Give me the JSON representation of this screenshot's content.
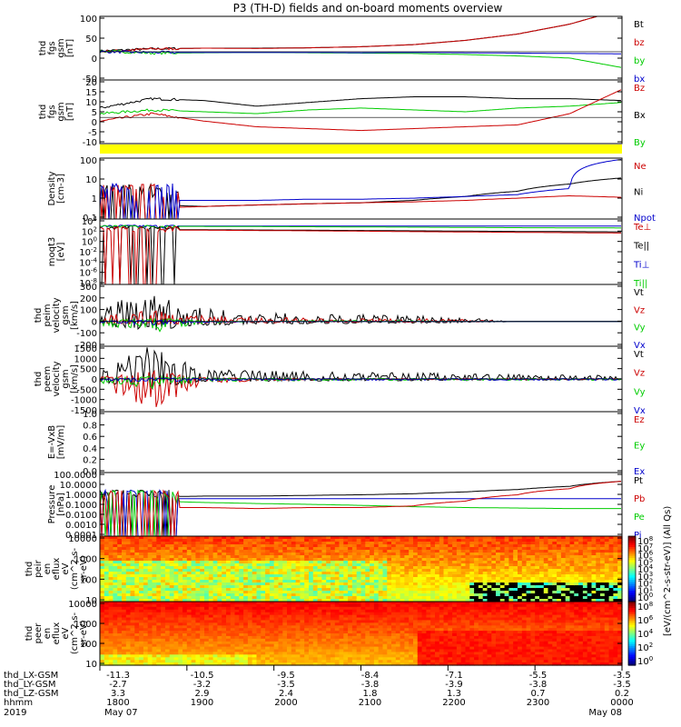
{
  "title": "P3 (TH-D) fields and on-board moments overview",
  "colors": {
    "black": "#000000",
    "red": "#cc0000",
    "green": "#00cc00",
    "blue": "#0000cc",
    "yellow": "#ffff00"
  },
  "chart_data": [
    {
      "type": "line",
      "ylabel": [
        "thd",
        "fgs",
        "gsm",
        "[nT]"
      ],
      "yticks": [
        "100",
        "50",
        "0",
        "-50"
      ],
      "ylim": [
        -80,
        100
      ],
      "legend": [
        {
          "label": "Bt",
          "color": "black"
        },
        {
          "label": "bz",
          "color": "red"
        },
        {
          "label": "by",
          "color": "green"
        },
        {
          "label": "bx",
          "color": "blue"
        }
      ],
      "series": [
        {
          "color": "black",
          "values": [
            2,
            8,
            10,
            10,
            11,
            14,
            20,
            32,
            50,
            78,
            120
          ]
        },
        {
          "color": "red",
          "values": [
            0,
            8,
            10,
            9,
            11,
            14,
            20,
            32,
            50,
            78,
            120
          ]
        },
        {
          "color": "green",
          "values": [
            2,
            -4,
            -3,
            -2,
            -3,
            -4,
            -5,
            -8,
            -12,
            -18,
            -45
          ]
        },
        {
          "color": "blue",
          "values": [
            0,
            -2,
            -2,
            -2,
            -2,
            -3,
            -2,
            -3,
            -4,
            -5,
            -6
          ]
        }
      ]
    },
    {
      "type": "line",
      "ylabel": [
        "thd",
        "fgs",
        "gsm",
        "[nT]"
      ],
      "yticks": [
        "20",
        "15",
        "10",
        "5",
        "0",
        "-5",
        "-10"
      ],
      "ylim": [
        -14,
        20
      ],
      "legend": [
        {
          "label": "Bz",
          "color": "red"
        },
        {
          "label": "Bx",
          "color": "black"
        },
        {
          "label": "By",
          "color": "green"
        }
      ],
      "series": [
        {
          "color": "black",
          "values": [
            5,
            10,
            9,
            6,
            8,
            10,
            11,
            11,
            10,
            10,
            9
          ]
        },
        {
          "color": "green",
          "values": [
            2,
            4,
            3,
            2,
            4,
            5,
            4,
            3,
            5,
            6,
            8
          ]
        },
        {
          "color": "red",
          "values": [
            -2,
            2,
            -2,
            -5,
            -6,
            -7,
            -6,
            -5,
            -4,
            2,
            15
          ]
        }
      ]
    },
    {
      "type": "line",
      "ylabel": [
        "Density",
        "[cm-3]"
      ],
      "yticks": [
        "100",
        "10",
        "1",
        "0.1"
      ],
      "ylim": [
        0.03,
        300
      ],
      "log": true,
      "legend": [
        {
          "label": "Ne",
          "color": "red"
        },
        {
          "label": "Ni",
          "color": "black"
        },
        {
          "label": "Npot",
          "color": "blue"
        }
      ],
      "series": [
        {
          "color": "black",
          "values": [
            0.3,
            0.25,
            0.2,
            0.25,
            0.3,
            0.35,
            0.5,
            0.9,
            2,
            6,
            15
          ]
        },
        {
          "color": "red",
          "values": [
            0.2,
            0.15,
            0.2,
            0.25,
            0.3,
            0.35,
            0.4,
            0.5,
            0.7,
            1,
            0.8
          ]
        },
        {
          "color": "blue",
          "values": [
            0.6,
            0.5,
            0.5,
            0.5,
            0.6,
            0.6,
            0.7,
            0.9,
            1.2,
            3,
            250
          ]
        }
      ]
    },
    {
      "type": "line",
      "ylabel": [
        "moqt3",
        "[eV]"
      ],
      "yticks": [
        "10^4",
        "10^2",
        "10^0",
        "10^-2",
        "10^-4",
        "10^-6",
        "10^-8"
      ],
      "ylim": [
        1e-09,
        100000.0
      ],
      "log": true,
      "legend": [
        {
          "label": "Te⊥",
          "color": "red"
        },
        {
          "label": "Te||",
          "color": "black"
        },
        {
          "label": "Ti⊥",
          "color": "blue"
        },
        {
          "label": "Ti||",
          "color": "green"
        }
      ],
      "series": [
        {
          "color": "blue",
          "values": [
            3000,
            3000,
            3000,
            3000,
            3000,
            3000,
            3000,
            3000,
            3000,
            3000,
            3000
          ]
        },
        {
          "color": "green",
          "values": [
            3000,
            2800,
            2600,
            2400,
            2200,
            2000,
            1800,
            1600,
            1400,
            1300,
            1200
          ]
        },
        {
          "color": "black",
          "values": [
            600,
            550,
            500,
            450,
            400,
            350,
            300,
            260,
            220,
            200,
            180
          ]
        },
        {
          "color": "red",
          "values": [
            500,
            450,
            400,
            350,
            300,
            250,
            200,
            170,
            140,
            120,
            100
          ]
        }
      ]
    },
    {
      "type": "line",
      "ylabel": [
        "thd",
        "peim",
        "velocity",
        "gsm",
        "[km/s]"
      ],
      "yticks": [
        "300",
        "200",
        "100",
        "0",
        "-100",
        "-200"
      ],
      "ylim": [
        -200,
        300
      ],
      "legend": [
        {
          "label": "Vt",
          "color": "black"
        },
        {
          "label": "Vz",
          "color": "red"
        },
        {
          "label": "Vy",
          "color": "green"
        },
        {
          "label": "Vx",
          "color": "blue"
        }
      ],
      "series": [
        {
          "color": "black",
          "values": [
            80,
            150,
            70,
            45,
            40,
            35,
            30,
            20,
            0,
            0,
            0
          ]
        },
        {
          "color": "red",
          "values": [
            30,
            60,
            30,
            20,
            20,
            15,
            15,
            10,
            0,
            0,
            0
          ]
        },
        {
          "color": "green",
          "values": [
            -20,
            -60,
            -10,
            0,
            5,
            5,
            5,
            0,
            0,
            0,
            0
          ]
        },
        {
          "color": "blue",
          "values": [
            -5,
            -20,
            -5,
            0,
            0,
            0,
            0,
            0,
            0,
            0,
            0
          ]
        }
      ]
    },
    {
      "type": "line",
      "ylabel": [
        "thd",
        "peem",
        "velocity",
        "gsm",
        "[km/s]"
      ],
      "yticks": [
        "1500",
        "1000",
        "500",
        "0",
        "-500",
        "-1000",
        "-1500"
      ],
      "ylim": [
        -1500,
        1500
      ],
      "legend": [
        {
          "label": "Vt",
          "color": "black"
        },
        {
          "label": "Vz",
          "color": "red"
        },
        {
          "label": "Vy",
          "color": "green"
        },
        {
          "label": "Vx",
          "color": "blue"
        }
      ],
      "series": [
        {
          "color": "black",
          "values": [
            350,
            1000,
            300,
            250,
            220,
            200,
            180,
            150,
            130,
            120,
            100
          ]
        },
        {
          "color": "red",
          "values": [
            -200,
            -900,
            -150,
            -50,
            -30,
            -20,
            -20,
            -20,
            -20,
            -20,
            -20
          ]
        },
        {
          "color": "green",
          "values": [
            -150,
            -300,
            -80,
            -60,
            -50,
            -50,
            -50,
            -40,
            -40,
            -40,
            -30
          ]
        },
        {
          "color": "blue",
          "values": [
            -50,
            -100,
            -50,
            -40,
            -40,
            -40,
            -40,
            -40,
            -40,
            -40,
            -40
          ]
        }
      ]
    },
    {
      "type": "line",
      "ylabel": [
        "E=-VxB",
        "[mV/m]"
      ],
      "yticks": [
        "1.0",
        "0.8",
        "0.6",
        "0.4",
        "0.2",
        "0.0"
      ],
      "ylim": [
        0,
        1
      ],
      "legend": [
        {
          "label": "Ez",
          "color": "red"
        },
        {
          "label": "Ey",
          "color": "green"
        },
        {
          "label": "Ex",
          "color": "blue"
        }
      ],
      "series": []
    },
    {
      "type": "line",
      "ylabel": [
        "Pressure",
        "[nPa]"
      ],
      "yticks": [
        "100.0000",
        "10.0000",
        "1.0000",
        "0.1000",
        "0.0100",
        "0.0010",
        "0.0001"
      ],
      "ylim": [
        0.0001,
        100
      ],
      "log": true,
      "legend": [
        {
          "label": "Pt",
          "color": "black"
        },
        {
          "label": "Pb",
          "color": "red"
        },
        {
          "label": "Pe",
          "color": "green"
        },
        {
          "label": "Pi",
          "color": "blue"
        }
      ],
      "series": [
        {
          "color": "black",
          "values": [
            0.3,
            0.5,
            0.6,
            0.6,
            0.7,
            0.8,
            1,
            1.5,
            2.5,
            5,
            15
          ]
        },
        {
          "color": "blue",
          "values": [
            0.25,
            0.35,
            0.35,
            0.35,
            0.35,
            0.35,
            0.35,
            0.35,
            0.35,
            0.35,
            0.35
          ]
        },
        {
          "color": "green",
          "values": [
            0.1,
            0.2,
            0.15,
            0.12,
            0.1,
            0.08,
            0.06,
            0.05,
            0.045,
            0.04,
            0.04
          ]
        },
        {
          "color": "red",
          "values": [
            0.01,
            0.05,
            0.05,
            0.04,
            0.05,
            0.05,
            0.07,
            0.2,
            0.8,
            3,
            15
          ]
        }
      ]
    },
    {
      "type": "heatmap",
      "ylabel": [
        "thd",
        "peir",
        "en",
        "eflux",
        "eV",
        "(cm^2-s-",
        "sr-eV)"
      ],
      "yticks": [
        "10000",
        "1000",
        "100",
        "10"
      ],
      "colorbar_ticks": [
        "10^8",
        "10^7",
        "10^6",
        "10^5",
        "10^4",
        "10^3",
        "10^2",
        "10^1",
        "10^0"
      ]
    },
    {
      "type": "heatmap",
      "ylabel": [
        "thd",
        "peer",
        "en",
        "eflux",
        "eV",
        "(cm^2-s-",
        "sr-eV)"
      ],
      "yticks": [
        "10000",
        "1000",
        "100",
        "10"
      ],
      "colorbar_ticks": [
        "10^8",
        "10^6",
        "10^4",
        "10^2",
        "10^0"
      ]
    }
  ],
  "colorbar_label": "[eV/(cm^2-s-str-eV)]  (All Qs)",
  "xaxis": {
    "rows": [
      {
        "label": "thd_LX-GSM",
        "values": [
          "-11.3",
          "-10.5",
          "-9.5",
          "-8.4",
          "-7.1",
          "-5.5",
          "-3.5"
        ]
      },
      {
        "label": "thd_LY-GSM",
        "values": [
          "-2.7",
          "-3.2",
          "-3.5",
          "-3.8",
          "-3.9",
          "-3.8",
          "-3.5"
        ]
      },
      {
        "label": "thd_LZ-GSM",
        "values": [
          "3.3",
          "2.9",
          "2.4",
          "1.8",
          "1.3",
          "0.7",
          "0.2"
        ]
      },
      {
        "label": "hhmm",
        "values": [
          "1800",
          "1900",
          "2000",
          "2100",
          "2200",
          "2300",
          "0000"
        ]
      }
    ],
    "year": "2019",
    "date_start": "May 07",
    "date_end": "May 08"
  }
}
